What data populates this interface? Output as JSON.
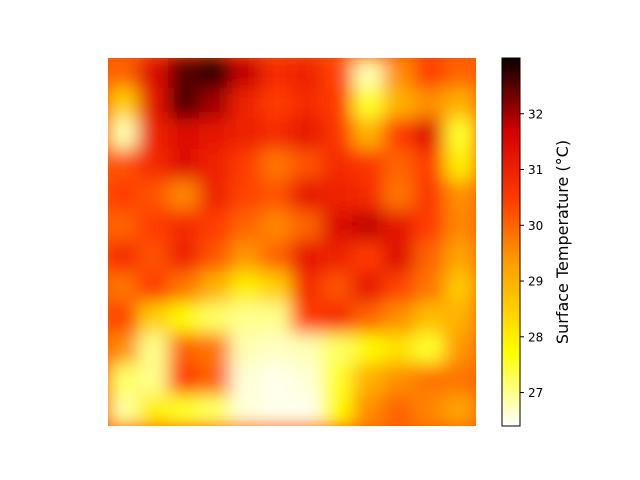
{
  "chart_data": {
    "type": "heatmap",
    "title": "",
    "xlabel": "",
    "ylabel": "",
    "axes_visible": false,
    "grid": false,
    "colormap": "hot_r",
    "colorbar": {
      "label": "Surface Temperature (°C)",
      "range": [
        26.4,
        33.0
      ],
      "ticks": [
        27,
        28,
        29,
        30,
        31,
        32
      ],
      "tick_labels": [
        "27",
        "28",
        "29",
        "30",
        "31",
        "32"
      ],
      "placement": "right"
    },
    "grid_rows": 12,
    "grid_cols": 12,
    "values": [
      [
        30.0,
        31.5,
        32.5,
        32.8,
        31.8,
        30.8,
        31.0,
        30.4,
        26.8,
        29.5,
        30.5,
        30.0
      ],
      [
        28.5,
        31.2,
        32.6,
        32.0,
        31.0,
        30.5,
        30.8,
        30.5,
        27.5,
        29.0,
        29.5,
        29.0
      ],
      [
        26.8,
        31.0,
        31.5,
        31.2,
        31.0,
        30.8,
        31.2,
        30.6,
        29.0,
        30.5,
        31.5,
        27.5
      ],
      [
        30.2,
        30.8,
        31.4,
        31.0,
        30.5,
        29.8,
        30.2,
        30.8,
        30.6,
        30.0,
        30.5,
        28.0
      ],
      [
        30.5,
        30.2,
        29.6,
        31.0,
        30.4,
        30.2,
        31.2,
        31.0,
        30.8,
        29.8,
        30.6,
        29.5
      ],
      [
        30.0,
        30.5,
        30.8,
        30.5,
        30.0,
        29.6,
        30.0,
        31.5,
        31.8,
        31.2,
        30.5,
        29.6
      ],
      [
        30.8,
        30.2,
        31.0,
        30.2,
        29.4,
        30.0,
        31.2,
        31.0,
        30.5,
        31.5,
        30.0,
        29.2
      ],
      [
        29.8,
        30.5,
        29.8,
        29.0,
        28.0,
        28.5,
        30.8,
        30.2,
        31.2,
        30.4,
        29.8,
        28.6
      ],
      [
        30.4,
        28.5,
        27.8,
        27.2,
        27.0,
        27.0,
        30.5,
        30.8,
        30.0,
        29.5,
        28.8,
        29.0
      ],
      [
        29.5,
        27.0,
        30.0,
        29.8,
        26.8,
        26.7,
        26.8,
        27.2,
        27.8,
        28.2,
        27.5,
        29.4
      ],
      [
        27.2,
        27.0,
        30.5,
        30.0,
        26.6,
        26.5,
        26.6,
        27.5,
        29.0,
        29.5,
        29.8,
        29.8
      ],
      [
        26.9,
        28.0,
        27.5,
        27.2,
        26.6,
        26.5,
        26.5,
        27.8,
        29.5,
        30.0,
        29.6,
        29.2
      ]
    ]
  }
}
